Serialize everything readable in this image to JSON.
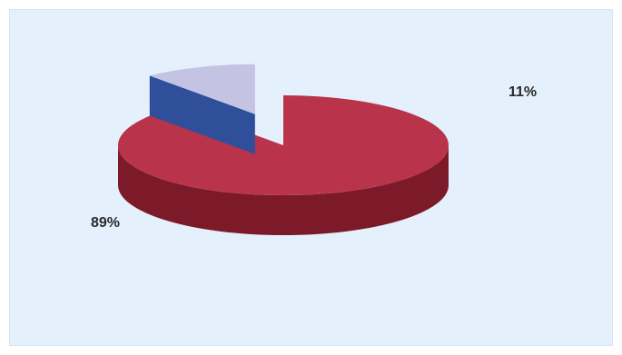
{
  "chart_data": {
    "type": "pie",
    "style": "3d-exploded",
    "slices": [
      {
        "value": 89,
        "label": "89%",
        "color": "#b9334a",
        "side_color": "#7d1a29"
      },
      {
        "value": 11,
        "label": "11%",
        "color": "#c4c3e3",
        "side_color": "#2f4f9a"
      }
    ],
    "title": "",
    "legend": "none",
    "background": "#e4f0fb"
  }
}
